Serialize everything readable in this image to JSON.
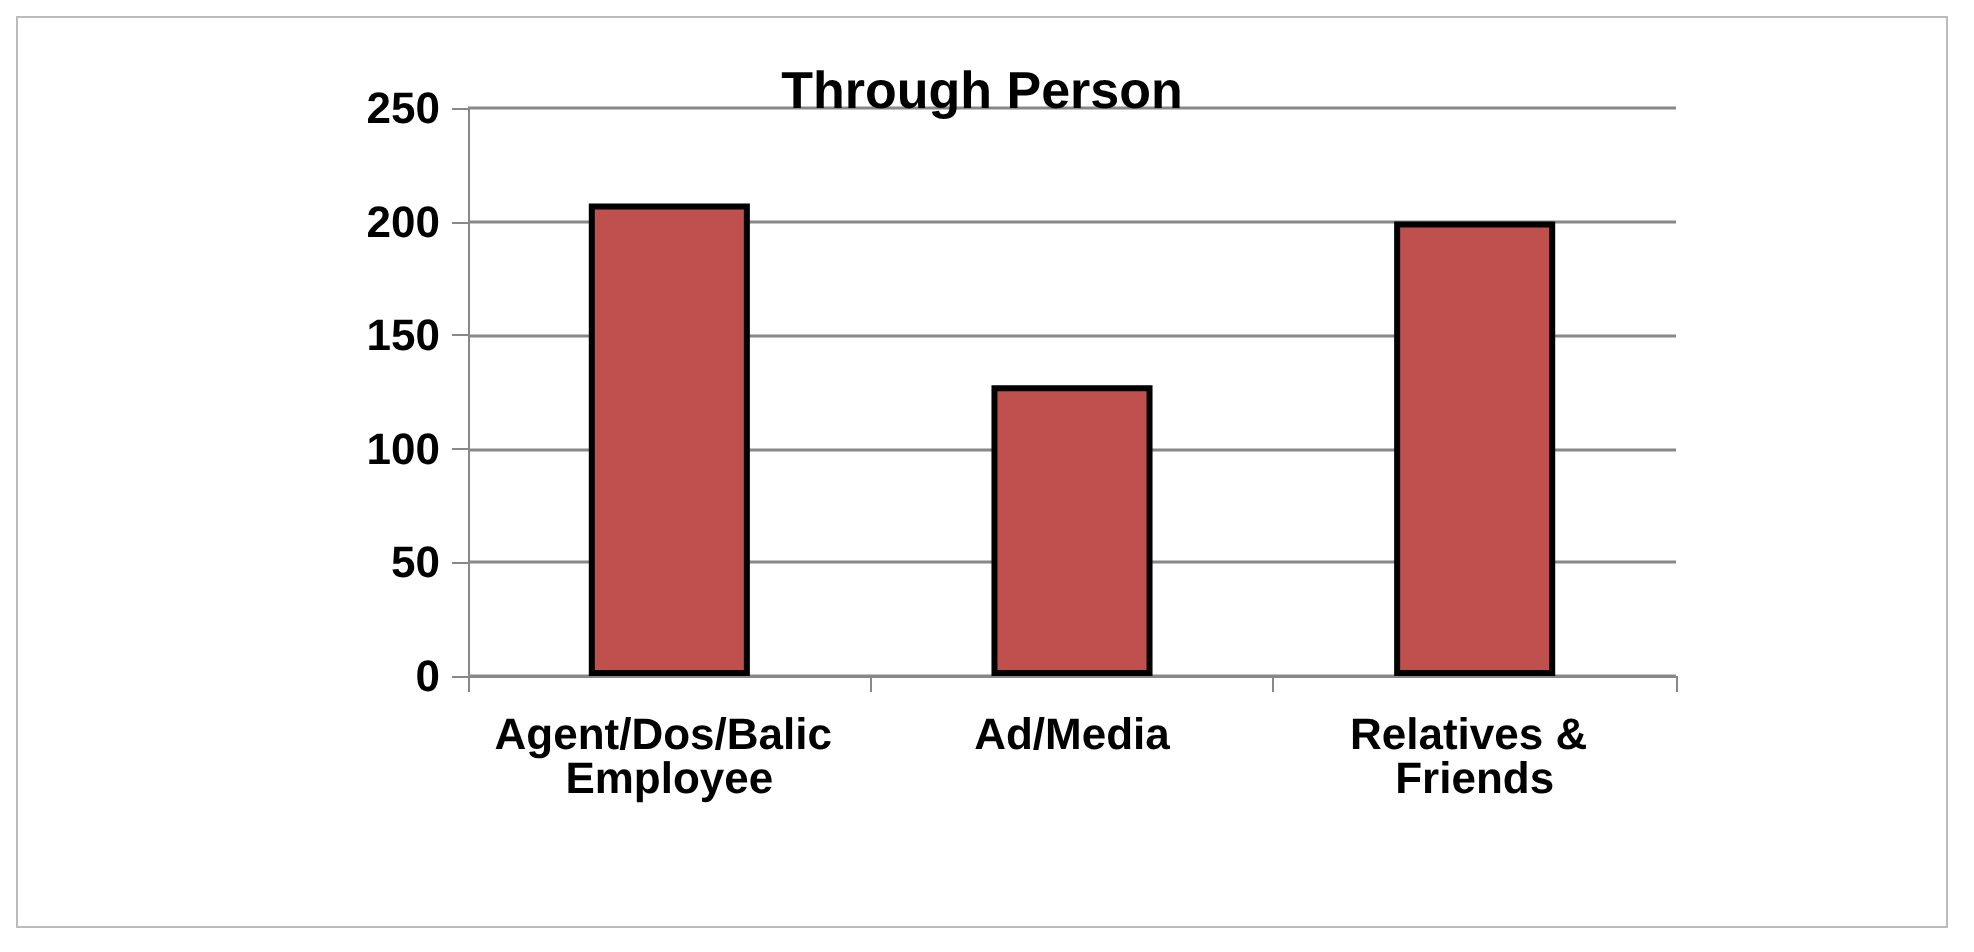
{
  "chart_data": {
    "type": "bar",
    "title": "Through Person",
    "categories": [
      "Agent/Dos/Balic Employee",
      "Ad/Media",
      "Relatives & Friends"
    ],
    "values": [
      208,
      128,
      200
    ],
    "color": "#c0504d",
    "ylim": [
      0,
      250
    ],
    "yticks": [
      0,
      50,
      100,
      150,
      200,
      250
    ],
    "grid": "y"
  }
}
